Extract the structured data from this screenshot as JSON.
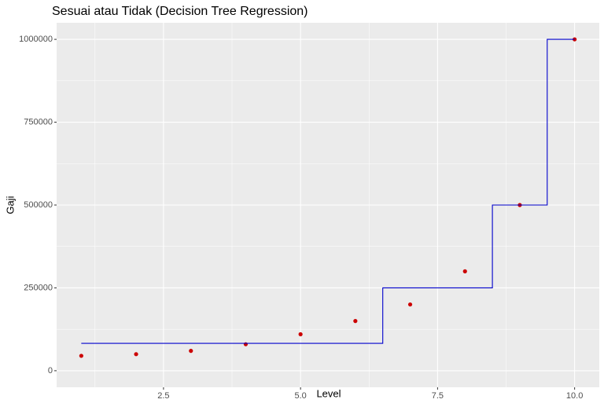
{
  "chart_data": {
    "type": "scatter",
    "title": "Sesuai atau Tidak (Decision Tree Regression)",
    "xlabel": "Level",
    "ylabel": "Gaji",
    "xlim": [
      0.55,
      10.45
    ],
    "ylim": [
      -50000,
      1050000
    ],
    "xticks": [
      2.5,
      {
        "value": 5,
        "label": "5.0"
      },
      7.5,
      {
        "value": 10,
        "label": "10.0"
      }
    ],
    "yticks": [
      0,
      250000,
      500000,
      750000,
      1000000
    ],
    "xminor": [
      1.25,
      3.75,
      6.25,
      8.75
    ],
    "yminor": [
      125000,
      375000,
      625000,
      875000
    ],
    "grid": true,
    "series": [
      {
        "type": "scatter",
        "color": "#cc0000",
        "x": [
          1,
          2,
          3,
          4,
          5,
          6,
          7,
          8,
          9,
          10
        ],
        "values": [
          45000,
          50000,
          60000,
          80000,
          110000,
          150000,
          200000,
          300000,
          500000,
          1000000
        ]
      },
      {
        "type": "line",
        "color": "#0000cc",
        "x": [
          1,
          6.5,
          6.5,
          8.5,
          8.5,
          9.5,
          9.5,
          10
        ],
        "values": [
          82500,
          82500,
          250000,
          250000,
          500000,
          500000,
          1000000,
          1000000
        ]
      }
    ]
  }
}
